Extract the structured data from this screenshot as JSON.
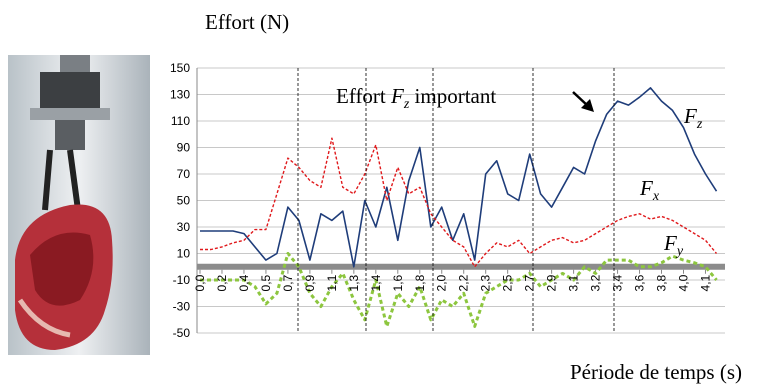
{
  "chart_data": {
    "type": "line",
    "y_label": "Effort (N)",
    "x_label": "Période de temps (s)",
    "annotation": {
      "text": "Effort",
      "symbol": "F",
      "subscript": "z",
      "text_after": "important"
    },
    "xlim": [
      0,
      4.3
    ],
    "ylim": [
      -50,
      150
    ],
    "yticks": [
      -50,
      -30,
      -10,
      10,
      30,
      50,
      70,
      90,
      110,
      130,
      150
    ],
    "xticks": [
      {
        "value": 0,
        "label": "0,0"
      },
      {
        "value": 0.18,
        "label": "0,2"
      },
      {
        "value": 0.36,
        "label": "0,4"
      },
      {
        "value": 0.54,
        "label": "0,5"
      },
      {
        "value": 0.72,
        "label": "0,7"
      },
      {
        "value": 0.9,
        "label": "0,9"
      },
      {
        "value": 1.08,
        "label": "1,1"
      },
      {
        "value": 1.26,
        "label": "1,3"
      },
      {
        "value": 1.44,
        "label": "1,4"
      },
      {
        "value": 1.62,
        "label": "1,6"
      },
      {
        "value": 1.8,
        "label": "1,8"
      },
      {
        "value": 1.98,
        "label": "2,0"
      },
      {
        "value": 2.16,
        "label": "2,2"
      },
      {
        "value": 2.34,
        "label": "2,3"
      },
      {
        "value": 2.52,
        "label": "2,5"
      },
      {
        "value": 2.7,
        "label": "2,7"
      },
      {
        "value": 2.88,
        "label": "2,9"
      },
      {
        "value": 3.06,
        "label": "3,1"
      },
      {
        "value": 3.24,
        "label": "3,2"
      },
      {
        "value": 3.42,
        "label": "3,4"
      },
      {
        "value": 3.6,
        "label": "3,6"
      },
      {
        "value": 3.78,
        "label": "3,8"
      },
      {
        "value": 3.96,
        "label": "4,0"
      },
      {
        "value": 4.14,
        "label": "4,1"
      }
    ],
    "grid": true,
    "x": [
      0,
      0.09,
      0.18,
      0.27,
      0.36,
      0.45,
      0.54,
      0.63,
      0.72,
      0.81,
      0.9,
      0.99,
      1.08,
      1.17,
      1.26,
      1.35,
      1.44,
      1.53,
      1.62,
      1.71,
      1.8,
      1.89,
      1.98,
      2.07,
      2.16,
      2.25,
      2.34,
      2.43,
      2.52,
      2.61,
      2.7,
      2.79,
      2.88,
      2.97,
      3.06,
      3.15,
      3.24,
      3.33,
      3.42,
      3.51,
      3.6,
      3.69,
      3.78,
      3.87,
      3.96,
      4.05,
      4.14,
      4.23
    ],
    "series": [
      {
        "name": "F",
        "subscript": "z",
        "color": "#1f3d7a",
        "dash": "none",
        "width": 1.6,
        "values": [
          27,
          27,
          27,
          27,
          25,
          15,
          5,
          10,
          45,
          35,
          5,
          40,
          35,
          42,
          0,
          50,
          30,
          60,
          20,
          65,
          90,
          30,
          45,
          20,
          40,
          5,
          70,
          80,
          55,
          50,
          85,
          55,
          45,
          60,
          75,
          70,
          95,
          115,
          125,
          122,
          128,
          135,
          125,
          118,
          105,
          85,
          70,
          57
        ]
      },
      {
        "name": "F",
        "subscript": "x",
        "color": "#e0191c",
        "dash": "3 2",
        "width": 1.4,
        "values": [
          13,
          13,
          15,
          18,
          20,
          28,
          28,
          55,
          82,
          75,
          65,
          60,
          97,
          60,
          55,
          70,
          92,
          50,
          75,
          55,
          60,
          40,
          30,
          20,
          15,
          0,
          10,
          18,
          15,
          20,
          10,
          15,
          20,
          22,
          18,
          20,
          25,
          30,
          35,
          38,
          40,
          36,
          38,
          35,
          30,
          25,
          20,
          10
        ]
      },
      {
        "name": "F",
        "subscript": "y",
        "color": "#8dc63f",
        "dash": "4 3",
        "width": 3,
        "values": [
          -10,
          -10,
          -10,
          -10,
          -10,
          -15,
          -28,
          -20,
          10,
          0,
          -20,
          -30,
          -15,
          -5,
          -25,
          -40,
          -10,
          -45,
          -20,
          -30,
          -15,
          -40,
          -25,
          -30,
          -20,
          -45,
          -20,
          -15,
          -10,
          -10,
          -5,
          -15,
          -10,
          -5,
          -10,
          0,
          -5,
          5,
          5,
          5,
          0,
          0,
          3,
          8,
          5,
          3,
          0,
          -10
        ]
      }
    ]
  }
}
